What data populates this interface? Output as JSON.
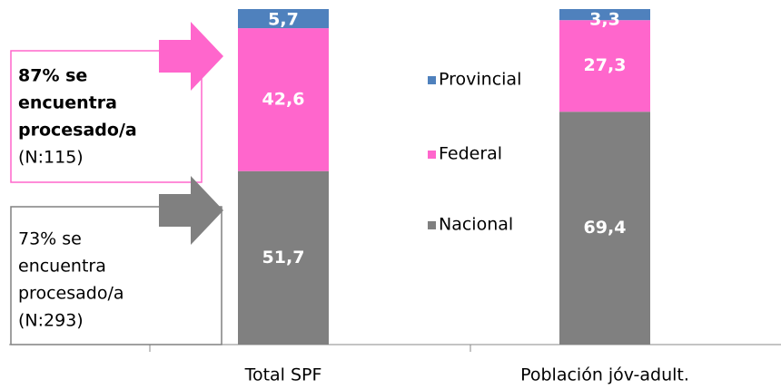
{
  "chart_data": {
    "type": "stacked_bar",
    "categories": [
      "Total SPF",
      "Población jóv-adult."
    ],
    "series": [
      {
        "name": "Nacional",
        "color": "#808080",
        "values": [
          51.7,
          69.4
        ],
        "value_labels": [
          "51,7",
          "69,4"
        ]
      },
      {
        "name": "Federal",
        "color": "#ff66cc",
        "values": [
          42.6,
          27.3
        ],
        "value_labels": [
          "42,6",
          "27,3"
        ]
      },
      {
        "name": "Provincial",
        "color": "#4f81bd",
        "values": [
          5.7,
          3.3
        ],
        "value_labels": [
          "5,7",
          "3,3"
        ]
      }
    ],
    "ylim": [
      0,
      100
    ],
    "annotations": [
      {
        "bold": [
          "87% se",
          "encuentra",
          "procesado/a"
        ],
        "normal": [
          "(N:115)"
        ]
      },
      {
        "bold": [],
        "normal": [
          "73% se",
          "encuentra",
          "procesado/a",
          "(N:293)"
        ]
      }
    ]
  }
}
